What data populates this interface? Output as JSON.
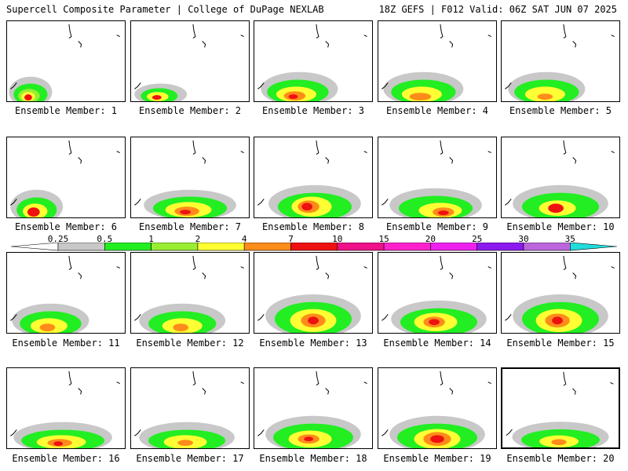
{
  "header": {
    "title": "Supercell Composite Parameter | College of DuPage NEXLAB",
    "run_info": "18Z GEFS | F012 Valid: 06Z SAT JUN 07 2025"
  },
  "members": [
    "Ensemble Member: 1",
    "Ensemble Member: 2",
    "Ensemble Member: 3",
    "Ensemble Member: 4",
    "Ensemble Member: 5",
    "Ensemble Member: 6",
    "Ensemble Member: 7",
    "Ensemble Member: 8",
    "Ensemble Member: 9",
    "Ensemble Member: 10",
    "Ensemble Member: 11",
    "Ensemble Member: 12",
    "Ensemble Member: 13",
    "Ensemble Member: 14",
    "Ensemble Member: 15",
    "Ensemble Member: 16",
    "Ensemble Member: 17",
    "Ensemble Member: 18",
    "Ensemble Member: 19",
    "Ensemble Member: 20"
  ],
  "selected_member": 20,
  "colorbar": {
    "labels": [
      "0.25",
      "0.5",
      "1",
      "2",
      "4",
      "7",
      "10",
      "15",
      "20",
      "25",
      "30",
      "35"
    ],
    "colors": [
      "#ffffff",
      "#c8c8c8",
      "#22ee22",
      "#99ee33",
      "#ffff33",
      "#ff8c1a",
      "#ee1111",
      "#ee1188",
      "#ff22cc",
      "#ee22ee",
      "#8a1aee",
      "#bb66dd",
      "#22dddd"
    ]
  }
}
